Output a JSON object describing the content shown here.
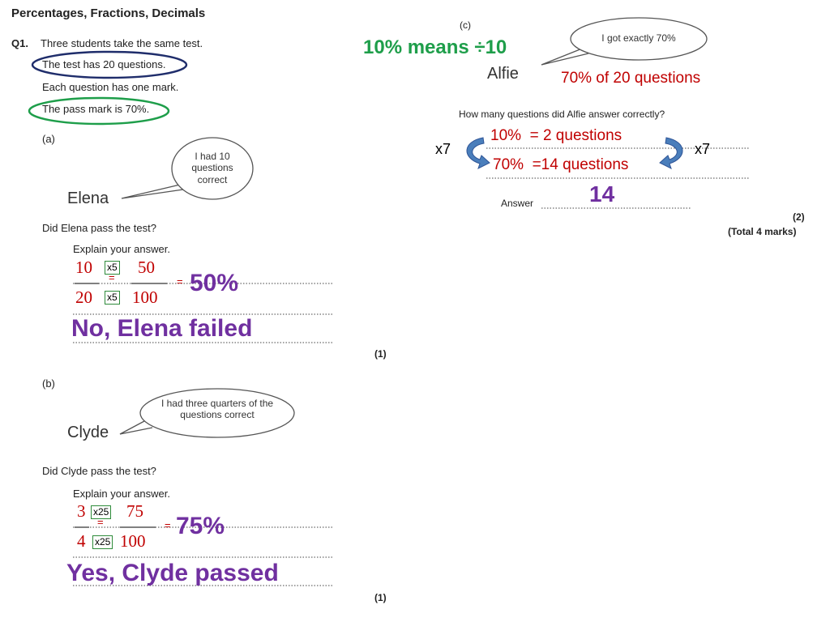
{
  "title": "Percentages, Fractions, Decimals",
  "question": {
    "number": "Q1.",
    "intro": "Three students take the same test.",
    "facts": [
      "The test has 20 questions.",
      "Each question has one mark.",
      "The pass mark is 70%."
    ]
  },
  "part_a": {
    "label": "(a)",
    "speech": "I had 10 questions correct",
    "name": "Elena",
    "prompt": "Did Elena pass the test?",
    "explain": "Explain your answer.",
    "working": {
      "num1": "10",
      "den1": "20",
      "mult": "x5",
      "num2": "50",
      "den2": "100",
      "equals": "=",
      "result": "50%"
    },
    "answer": "No, Elena failed",
    "marks": "(1)"
  },
  "part_b": {
    "label": "(b)",
    "speech": "I had three quarters of the questions correct",
    "name": "Clyde",
    "prompt": "Did Clyde pass the test?",
    "explain": "Explain your answer.",
    "working": {
      "num1": "3",
      "den1": "4",
      "mult": "x25",
      "num2": "75",
      "den2": "100",
      "equals": "=",
      "result": "75%"
    },
    "answer": "Yes, Clyde passed",
    "marks": "(1)"
  },
  "part_c": {
    "label": "(c)",
    "speech": "I got exactly 70%",
    "name": "Alfie",
    "hint": "10% means ÷10",
    "note": "70% of 20 questions",
    "prompt": "How many questions did Alfie answer correctly?",
    "step1": "10%  = 2 questions",
    "step2": "70%  =14 questions",
    "multiplier": "x7",
    "answer_label": "Answer",
    "answer": "14",
    "marks": "(2)",
    "total": "(Total 4 marks)"
  }
}
